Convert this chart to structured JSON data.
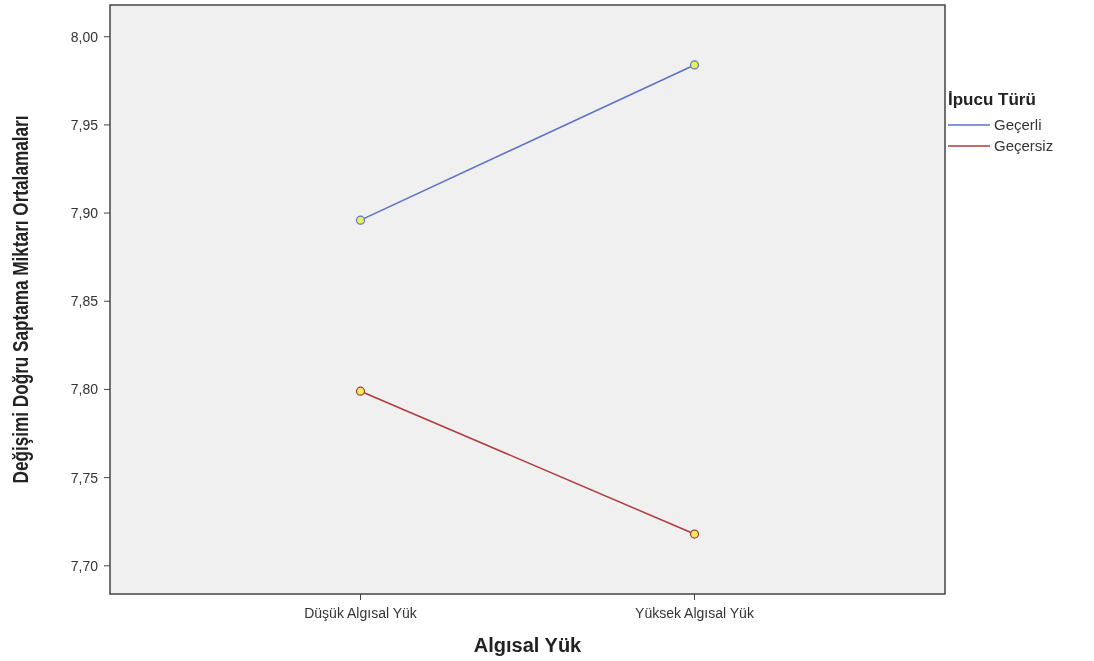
{
  "chart_data": {
    "type": "line",
    "xlabel": "Algısal Yük",
    "ylabel": "Değişimi Doğru Saptama Miktarı Ortalamaları",
    "legend_title": "İpucu Türü",
    "categories": [
      "Düşük Algısal Yük",
      "Yüksek Algısal Yük"
    ],
    "series": [
      {
        "name": "Geçerli",
        "color": "#5a72c8",
        "values": [
          7.896,
          7.984
        ]
      },
      {
        "name": "Geçersiz",
        "color": "#b03a3a",
        "values": [
          7.799,
          7.718
        ]
      }
    ],
    "ylim": [
      7.684,
      8.018
    ],
    "yticks": [
      {
        "value": 7.7,
        "label": "7,70"
      },
      {
        "value": 7.75,
        "label": "7,75"
      },
      {
        "value": 7.8,
        "label": "7,80"
      },
      {
        "value": 7.85,
        "label": "7,85"
      },
      {
        "value": 7.9,
        "label": "7,90"
      },
      {
        "value": 7.95,
        "label": "7,95"
      },
      {
        "value": 8,
        "label": "8,00"
      }
    ],
    "marker": "circle",
    "legend": "top right"
  }
}
